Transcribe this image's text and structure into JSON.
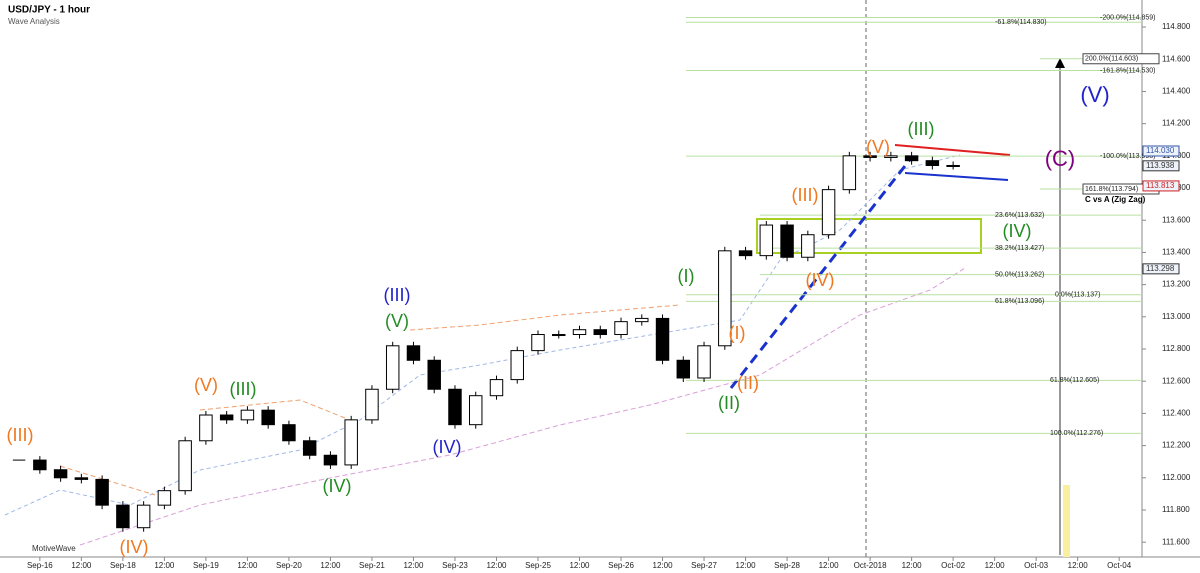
{
  "chart_data": {
    "type": "candlestick",
    "title": "USD/JPY - 1 hour",
    "subtitle": "Wave Analysis",
    "watermark": "MotiveWave",
    "x": [
      -0.5,
      0,
      0.5,
      1,
      1.5,
      2,
      2.5,
      3,
      3.5,
      4,
      4.5,
      5,
      5.5,
      6,
      6.5,
      7,
      7.5,
      8,
      8.5,
      9,
      9.5,
      10,
      10.5,
      11,
      11.5,
      12,
      12.5,
      13,
      13.5,
      14,
      14.5,
      15,
      15.5,
      16,
      16.5,
      17,
      17.5,
      18,
      18.5,
      19,
      19.5,
      20,
      20.5,
      21,
      21.5,
      22
    ],
    "series": [
      {
        "name": "USD/JPY",
        "color": "#000000",
        "values": [
          112.11,
          112.05,
          112.0,
          111.99,
          111.83,
          111.69,
          111.83,
          111.92,
          112.23,
          112.39,
          112.36,
          112.42,
          112.33,
          112.23,
          112.14,
          112.08,
          112.36,
          112.55,
          112.82,
          112.73,
          112.55,
          112.33,
          112.51,
          112.61,
          112.79,
          112.89,
          112.89,
          112.92,
          112.89,
          112.97,
          112.99,
          112.73,
          112.62,
          112.82,
          113.41,
          113.38,
          113.57,
          113.37,
          113.51,
          113.79,
          114.0,
          113.99,
          114.0,
          113.97,
          113.94,
          113.94
        ]
      }
    ],
    "xlim": [
      -0.96,
      26.55
    ],
    "xticks": [
      {
        "value": 0,
        "label": "Sep-16"
      },
      {
        "value": 1,
        "label": "12:00"
      },
      {
        "value": 2,
        "label": "Sep-18"
      },
      {
        "value": 3,
        "label": "12:00"
      },
      {
        "value": 4,
        "label": "Sep-19"
      },
      {
        "value": 5,
        "label": "12:00"
      },
      {
        "value": 6,
        "label": "Sep-20"
      },
      {
        "value": 7,
        "label": "12:00"
      },
      {
        "value": 8,
        "label": "Sep-21"
      },
      {
        "value": 9,
        "label": "12:00"
      },
      {
        "value": 10,
        "label": "Sep-23"
      },
      {
        "value": 11,
        "label": "12:00"
      },
      {
        "value": 12,
        "label": "Sep-25"
      },
      {
        "value": 13,
        "label": "12:00"
      },
      {
        "value": 14,
        "label": "Sep-26"
      },
      {
        "value": 15,
        "label": "12:00"
      },
      {
        "value": 16,
        "label": "Sep-27"
      },
      {
        "value": 17,
        "label": "12:00"
      },
      {
        "value": 18,
        "label": "Sep-28"
      },
      {
        "value": 19,
        "label": "12:00"
      },
      {
        "value": 20,
        "label": "Oct-2018"
      },
      {
        "value": 21,
        "label": "12:00"
      },
      {
        "value": 22,
        "label": "Oct-02"
      },
      {
        "value": 23,
        "label": "12:00"
      },
      {
        "value": 24,
        "label": "Oct-03"
      },
      {
        "value": 25,
        "label": "12:00"
      },
      {
        "value": 26,
        "label": "Oct-04"
      }
    ],
    "ylim": [
      111.508,
      114.968
    ],
    "yticks": [
      {
        "value": 114.8,
        "label": "114.800"
      },
      {
        "value": 114.6,
        "label": "114.600"
      },
      {
        "value": 114.4,
        "label": "114.400"
      },
      {
        "value": 114.2,
        "label": "114.200"
      },
      {
        "value": 114.0,
        "label": "114.000"
      },
      {
        "value": 113.8,
        "label": "113.800"
      },
      {
        "value": 113.6,
        "label": "113.600"
      },
      {
        "value": 113.4,
        "label": "113.400"
      },
      {
        "value": 113.2,
        "label": "113.200"
      },
      {
        "value": 113.0,
        "label": "113.000"
      },
      {
        "value": 112.8,
        "label": "112.800"
      },
      {
        "value": 112.6,
        "label": "112.600"
      },
      {
        "value": 112.4,
        "label": "112.400"
      },
      {
        "value": 112.2,
        "label": "112.200"
      },
      {
        "value": 112.0,
        "label": "112.000"
      },
      {
        "value": 111.8,
        "label": "111.800"
      },
      {
        "value": 111.6,
        "label": "111.600"
      }
    ],
    "price_markers": [
      {
        "value": 114.03,
        "label": "114.030",
        "color": "#3355aa"
      },
      {
        "value": 113.938,
        "label": "113.938",
        "color": "#333333"
      },
      {
        "value": 113.813,
        "label": "113.813",
        "color": "#cc2222"
      },
      {
        "value": 113.298,
        "label": "113.298",
        "color": "#333333"
      }
    ],
    "fib_levels": [
      {
        "value": 114.859,
        "label": "-200.0%(114.859)"
      },
      {
        "value": 114.83,
        "label": "-61.8%(114.830)"
      },
      {
        "value": 114.603,
        "label": "200.0%(114.603)"
      },
      {
        "value": 114.53,
        "label": "-161.8%(114.530)"
      },
      {
        "value": 113.998,
        "label": "-100.0%(113.998)"
      },
      {
        "value": 113.794,
        "label": "161.8%(113.794)"
      },
      {
        "value": 113.632,
        "label": "23.6%(113.632)"
      },
      {
        "value": 113.427,
        "label": "38.2%(113.427)"
      },
      {
        "value": 113.262,
        "label": "50.0%(113.262)"
      },
      {
        "value": 113.137,
        "label": "0.0%(113.137)"
      },
      {
        "value": 113.096,
        "label": "61.8%(113.096)"
      },
      {
        "value": 112.605,
        "label": "61.8%(112.605)"
      },
      {
        "value": 112.276,
        "label": "100.0%(112.276)"
      }
    ],
    "fib_note": "C vs A (Zig Zag)",
    "wave_labels": [
      {
        "text": "(III)",
        "color": "#f07820"
      },
      {
        "text": "(V)",
        "color": "#f07820"
      },
      {
        "text": "(III)",
        "color": "#228b22"
      },
      {
        "text": "(IV)",
        "color": "#228b22"
      },
      {
        "text": "(IV)",
        "color": "#f07820"
      },
      {
        "text": "(III)",
        "color": "#2222cc"
      },
      {
        "text": "(V)",
        "color": "#228b22"
      },
      {
        "text": "(IV)",
        "color": "#2222cc"
      },
      {
        "text": "(I)",
        "color": "#228b22"
      },
      {
        "text": "(II)",
        "color": "#228b22"
      },
      {
        "text": "(I)",
        "color": "#f07820"
      },
      {
        "text": "(II)",
        "color": "#f07820"
      },
      {
        "text": "(III)",
        "color": "#f07820"
      },
      {
        "text": "(IV)",
        "color": "#f07820"
      },
      {
        "text": "(V)",
        "color": "#f07820"
      },
      {
        "text": "(III)",
        "color": "#228b22"
      },
      {
        "text": "(IV)",
        "color": "#228b22"
      },
      {
        "text": "(C)",
        "color": "#800080"
      },
      {
        "text": "(V)",
        "color": "#2222cc"
      }
    ]
  }
}
